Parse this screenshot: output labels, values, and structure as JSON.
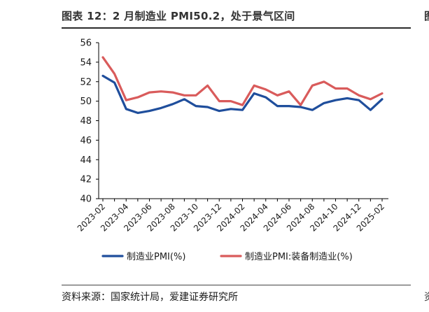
{
  "header": {
    "title": "图表 12：2 月制造业 PMI50.2，处于景气区间",
    "right_title_glyph": "图"
  },
  "footer": {
    "source": "资料来源：国家统计局，爱建证券研究所",
    "right_footer_glyph": "资"
  },
  "colors": {
    "series1": "#1f4e9c",
    "series2": "#d95b5b",
    "axis": "#000000"
  },
  "chart_data": {
    "type": "line",
    "title": "",
    "xlabel": "",
    "ylabel": "",
    "ylim": [
      40,
      56
    ],
    "yticks": [
      40,
      42,
      44,
      46,
      48,
      50,
      52,
      54,
      56
    ],
    "grid": false,
    "legend_position": "bottom",
    "x": [
      "2023-02",
      "2023-03",
      "2023-04",
      "2023-05",
      "2023-06",
      "2023-07",
      "2023-08",
      "2023-09",
      "2023-10",
      "2023-11",
      "2023-12",
      "2024-01",
      "2024-02",
      "2024-03",
      "2024-04",
      "2024-05",
      "2024-06",
      "2024-07",
      "2024-08",
      "2024-09",
      "2024-10",
      "2024-11",
      "2024-12",
      "2025-01",
      "2025-02"
    ],
    "xtick_labels": [
      "2023-02",
      "2023-04",
      "2023-06",
      "2023-08",
      "2023-10",
      "2023-12",
      "2024-02",
      "2024-04",
      "2024-06",
      "2024-08",
      "2024-10",
      "2024-12",
      "2025-02"
    ],
    "series": [
      {
        "name": "制造业PMI(%)",
        "color": "#1f4e9c",
        "values": [
          52.6,
          51.9,
          49.2,
          48.8,
          49.0,
          49.3,
          49.7,
          50.2,
          49.5,
          49.4,
          49.0,
          49.2,
          49.1,
          50.8,
          50.4,
          49.5,
          49.5,
          49.4,
          49.1,
          49.8,
          50.1,
          50.3,
          50.1,
          49.1,
          50.2
        ]
      },
      {
        "name": "制造业PMI:装备制造业(%)",
        "color": "#d95b5b",
        "values": [
          54.5,
          52.8,
          50.1,
          50.4,
          50.9,
          51.0,
          50.9,
          50.6,
          50.6,
          51.6,
          50.0,
          50.0,
          49.6,
          51.6,
          51.2,
          50.6,
          51.0,
          49.6,
          51.6,
          52.0,
          51.3,
          51.3,
          50.6,
          50.2,
          50.8
        ]
      }
    ]
  }
}
